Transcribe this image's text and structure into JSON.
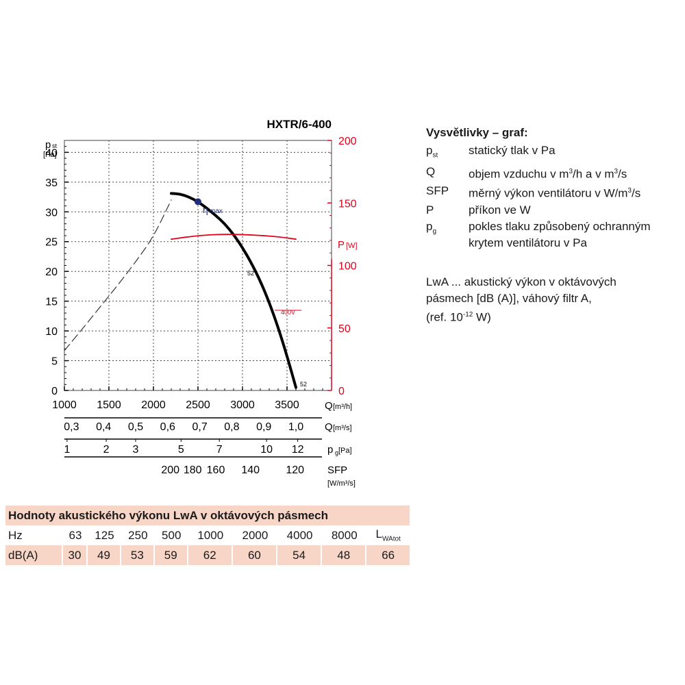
{
  "chart_data": {
    "type": "line",
    "title": "HXTR/6-400",
    "x_axis": {
      "label_main": "Q",
      "label_unit": "[m³/h]",
      "range": [
        1000,
        4000
      ],
      "ticks": [
        "1000",
        "1500",
        "2000",
        "2500",
        "3000",
        "3500"
      ]
    },
    "y_axis_left": {
      "label_main": "p",
      "label_sub": "st",
      "label_unit": "[Pa]",
      "range": [
        0,
        42
      ],
      "ticks": [
        "0",
        "5",
        "10",
        "15",
        "20",
        "25",
        "30",
        "35",
        "40"
      ]
    },
    "y_axis_right": {
      "label_main": "P",
      "label_unit": "[W]",
      "color": "#e2001a",
      "range": [
        0,
        200
      ],
      "ticks": [
        "0",
        "50",
        "100",
        "150",
        "200"
      ]
    },
    "secondary_axes": [
      {
        "label_main": "Q",
        "label_unit": "[m³/s]",
        "ticks": [
          {
            "label": "0,3",
            "q": 1080
          },
          {
            "label": "0,4",
            "q": 1440
          },
          {
            "label": "0,5",
            "q": 1800
          },
          {
            "label": "0,6",
            "q": 2160
          },
          {
            "label": "0,7",
            "q": 2520
          },
          {
            "label": "0,8",
            "q": 2880
          },
          {
            "label": "0,9",
            "q": 3240
          },
          {
            "label": "1,0",
            "q": 3600
          }
        ]
      },
      {
        "label_main": "p",
        "label_sub": "g",
        "label_unit": "[Pa]",
        "ticks": [
          {
            "label": "1",
            "q": 1030
          },
          {
            "label": "2",
            "q": 1470
          },
          {
            "label": "3",
            "q": 1800
          },
          {
            "label": "5",
            "q": 2310
          },
          {
            "label": "7",
            "q": 2740
          },
          {
            "label": "10",
            "q": 3270
          },
          {
            "label": "12",
            "q": 3620
          }
        ]
      },
      {
        "label_main": "SFP",
        "label_unit": "[W/m³/s]",
        "ticks": [
          {
            "label": "200",
            "q": 2190
          },
          {
            "label": "180",
            "q": 2440
          },
          {
            "label": "160",
            "q": 2700
          },
          {
            "label": "140",
            "q": 3090
          },
          {
            "label": "120",
            "q": 3590
          }
        ]
      }
    ],
    "series": [
      {
        "label": "52",
        "axis": "left",
        "color": "#000000",
        "style": "solid",
        "x": [
          2200,
          2300,
          2400,
          2500,
          2600,
          2700,
          2800,
          2900,
          3000,
          3100,
          3200,
          3300,
          3400,
          3500,
          3600
        ],
        "y": [
          33.1,
          33.0,
          32.5,
          31.7,
          30.6,
          29.4,
          28.0,
          26.2,
          24.0,
          21.4,
          18.4,
          14.8,
          10.6,
          5.8,
          0.5
        ]
      },
      {
        "axis": "left",
        "color": "#333333",
        "style": "dashed",
        "x": [
          1000,
          1200,
          1400,
          1600,
          1800,
          2000,
          2200
        ],
        "y": [
          6.7,
          10.3,
          14.0,
          17.7,
          21.6,
          25.8,
          32.0
        ]
      },
      {
        "label": "400V",
        "axis": "right",
        "color": "#e2001a",
        "style": "solid",
        "x": [
          2200,
          2500,
          2800,
          3100,
          3400,
          3600
        ],
        "y": [
          121,
          124,
          125,
          124.5,
          123,
          121
        ]
      }
    ],
    "annotations": [
      {
        "text": "η",
        "sub": "max",
        "x": 2500,
        "y": 31.7,
        "marker_color": "#1f2d7a"
      },
      {
        "text": "52",
        "x": 3250,
        "y": 21
      },
      {
        "text": "52",
        "x": 3600,
        "y": 1
      }
    ],
    "grid": true
  },
  "legend": {
    "title": "Vysvětlivky – graf:",
    "rows": [
      {
        "sym": "p",
        "sym_sub": "st",
        "desc": "statický tlak v Pa"
      },
      {
        "sym": "Q",
        "desc_pre": "objem vzduchu v m",
        "desc_mid": "/h a v m",
        "desc_post": "/s",
        "sup": "3"
      },
      {
        "sym": "SFP",
        "desc_pre": "měrný výkon ventilátoru v W/m",
        "desc_post": "/s",
        "sup": "3"
      },
      {
        "sym": "P",
        "desc": "příkon ve W"
      },
      {
        "sym": "p",
        "sym_sub": "g",
        "desc": "pokles tlaku způsobený ochranným",
        "desc2": "krytem ventilátoru v Pa"
      }
    ]
  },
  "note": {
    "line1": "LwA ... akustický výkon v oktávových",
    "line2": "pásmech [dB (A)],  váhový filtr A,",
    "line3_pre": "(ref. 10",
    "line3_sup": "-12",
    "line3_post": " W)"
  },
  "acoustic": {
    "title": "Hodnoty akustického výkonu LwA v oktávových pásmech",
    "freq_label": "Hz",
    "freqs": [
      "63",
      "125",
      "250",
      "500",
      "1000",
      "2000",
      "4000",
      "8000"
    ],
    "total_main": "L",
    "total_sub": "WAtot",
    "value_label": "dB(A)",
    "values": [
      "30",
      "49",
      "53",
      "59",
      "62",
      "60",
      "54",
      "48",
      "66"
    ]
  }
}
